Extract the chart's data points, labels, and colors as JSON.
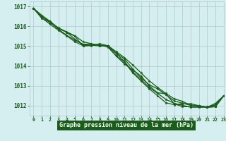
{
  "xlabel": "Graphe pression niveau de la mer (hPa)",
  "xlim": [
    -0.5,
    23
  ],
  "ylim": [
    1011.5,
    1017.25
  ],
  "yticks": [
    1012,
    1013,
    1014,
    1015,
    1016,
    1017
  ],
  "xticks": [
    0,
    1,
    2,
    3,
    4,
    5,
    6,
    7,
    8,
    9,
    10,
    11,
    12,
    13,
    14,
    15,
    16,
    17,
    18,
    19,
    20,
    21,
    22,
    23
  ],
  "bg_color": "#d5eef0",
  "grid_color": "#b0c8cc",
  "line_color": "#1a5c1a",
  "xlabel_bg": "#1a5c1a",
  "xlabel_fg": "#ffffff",
  "marker": "*",
  "lines": [
    [
      1016.9,
      1016.55,
      1016.25,
      1015.9,
      1015.7,
      1015.5,
      1015.0,
      1015.05,
      1015.0,
      1015.0,
      1014.5,
      1014.1,
      1013.8,
      1013.5,
      1013.0,
      1012.65,
      1012.6,
      1012.1,
      1011.95,
      1011.95,
      1011.95,
      1011.95,
      1012.05,
      1012.5
    ],
    [
      1016.9,
      1016.4,
      1016.2,
      1015.85,
      1015.55,
      1015.3,
      1015.1,
      1015.1,
      1015.05,
      1014.95,
      1014.5,
      1014.2,
      1013.65,
      1013.25,
      1012.85,
      1012.5,
      1012.15,
      1012.05,
      1012.1,
      1012.1,
      1012.0,
      1011.92,
      1011.95,
      1012.5
    ],
    [
      1016.9,
      1016.5,
      1016.2,
      1015.9,
      1015.7,
      1015.35,
      1015.05,
      1015.1,
      1015.05,
      1015.0,
      1014.65,
      1014.35,
      1013.85,
      1013.4,
      1013.05,
      1012.85,
      1012.55,
      1012.25,
      1012.12,
      1012.02,
      1012.0,
      1011.92,
      1011.95,
      1012.5
    ],
    [
      1016.9,
      1016.42,
      1016.1,
      1015.8,
      1015.52,
      1015.22,
      1015.02,
      1015.02,
      1015.12,
      1015.02,
      1014.72,
      1014.42,
      1014.05,
      1013.65,
      1013.25,
      1012.92,
      1012.62,
      1012.35,
      1012.22,
      1012.02,
      1012.0,
      1011.92,
      1012.02,
      1012.5
    ],
    [
      1016.9,
      1016.5,
      1016.22,
      1015.92,
      1015.72,
      1015.52,
      1015.22,
      1015.12,
      1015.02,
      1015.02,
      1014.62,
      1014.22,
      1013.72,
      1013.32,
      1012.92,
      1012.62,
      1012.32,
      1012.12,
      1012.02,
      1011.92,
      1011.92,
      1011.92,
      1012.12,
      1012.5
    ]
  ]
}
